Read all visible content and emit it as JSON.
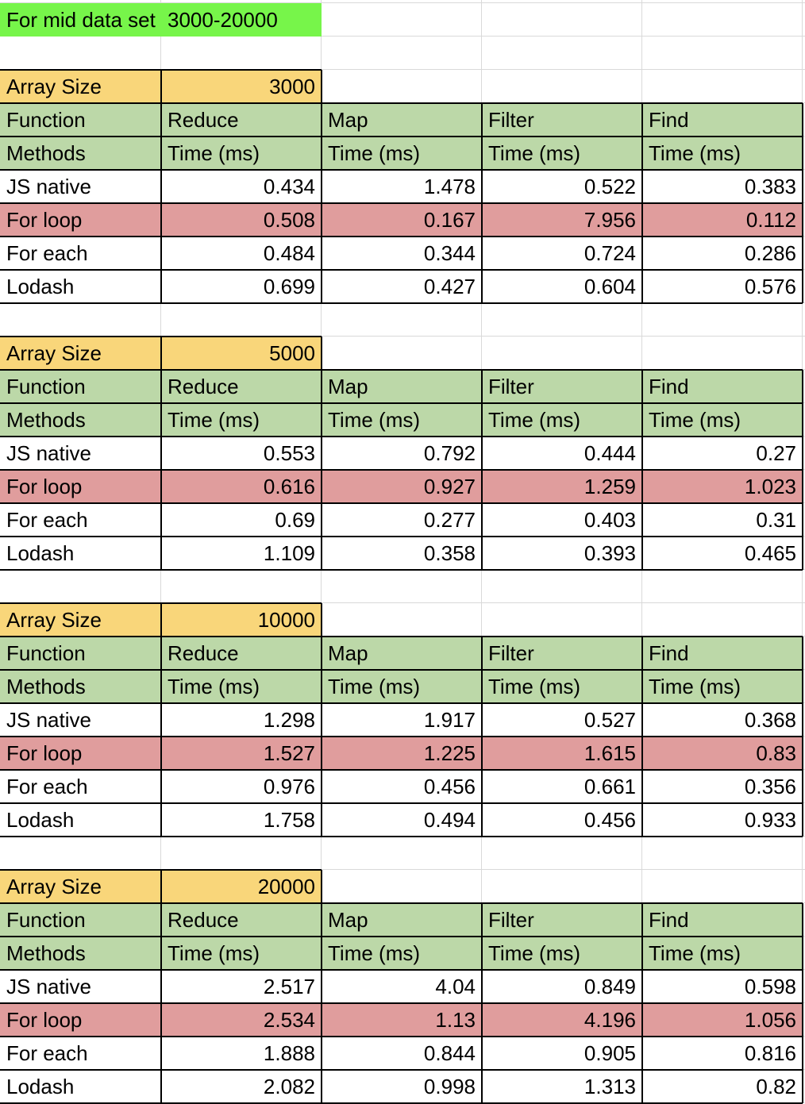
{
  "sheet": {
    "title_label": "For mid data set",
    "title_range": "3000-20000",
    "blocks": [
      {
        "array_size_label": "Array Size",
        "array_size": "3000",
        "header_functions": [
          "Function",
          "Reduce",
          "Map",
          "Filter",
          "Find"
        ],
        "header_units": [
          "Methods",
          "Time (ms)",
          "Time (ms)",
          "Time (ms)",
          "Time (ms)"
        ],
        "rows": [
          {
            "method": "JS native",
            "values": [
              "0.434",
              "1.478",
              "0.522",
              "0.383"
            ],
            "highlight": false
          },
          {
            "method": "For loop",
            "values": [
              "0.508",
              "0.167",
              "7.956",
              "0.112"
            ],
            "highlight": true
          },
          {
            "method": "For each",
            "values": [
              "0.484",
              "0.344",
              "0.724",
              "0.286"
            ],
            "highlight": false
          },
          {
            "method": "Lodash",
            "values": [
              "0.699",
              "0.427",
              "0.604",
              "0.576"
            ],
            "highlight": false
          }
        ]
      },
      {
        "array_size_label": "Array Size",
        "array_size": "5000",
        "header_functions": [
          "Function",
          "Reduce",
          "Map",
          "Filter",
          "Find"
        ],
        "header_units": [
          "Methods",
          "Time (ms)",
          "Time (ms)",
          "Time (ms)",
          "Time (ms)"
        ],
        "rows": [
          {
            "method": "JS native",
            "values": [
              "0.553",
              "0.792",
              "0.444",
              "0.27"
            ],
            "highlight": false
          },
          {
            "method": "For loop",
            "values": [
              "0.616",
              "0.927",
              "1.259",
              "1.023"
            ],
            "highlight": true
          },
          {
            "method": "For each",
            "values": [
              "0.69",
              "0.277",
              "0.403",
              "0.31"
            ],
            "highlight": false
          },
          {
            "method": "Lodash",
            "values": [
              "1.109",
              "0.358",
              "0.393",
              "0.465"
            ],
            "highlight": false
          }
        ]
      },
      {
        "array_size_label": "Array Size",
        "array_size": "10000",
        "header_functions": [
          "Function",
          "Reduce",
          "Map",
          "Filter",
          "Find"
        ],
        "header_units": [
          "Methods",
          "Time (ms)",
          "Time (ms)",
          "Time (ms)",
          "Time (ms)"
        ],
        "rows": [
          {
            "method": "JS native",
            "values": [
              "1.298",
              "1.917",
              "0.527",
              "0.368"
            ],
            "highlight": false
          },
          {
            "method": "For loop",
            "values": [
              "1.527",
              "1.225",
              "1.615",
              "0.83"
            ],
            "highlight": true
          },
          {
            "method": "For each",
            "values": [
              "0.976",
              "0.456",
              "0.661",
              "0.356"
            ],
            "highlight": false
          },
          {
            "method": "Lodash",
            "values": [
              "1.758",
              "0.494",
              "0.456",
              "0.933"
            ],
            "highlight": false
          }
        ]
      },
      {
        "array_size_label": "Array Size",
        "array_size": "20000",
        "header_functions": [
          "Function",
          "Reduce",
          "Map",
          "Filter",
          "Find"
        ],
        "header_units": [
          "Methods",
          "Time (ms)",
          "Time (ms)",
          "Time (ms)",
          "Time (ms)"
        ],
        "rows": [
          {
            "method": "JS native",
            "values": [
              "2.517",
              "4.04",
              "0.849",
              "0.598"
            ],
            "highlight": false
          },
          {
            "method": "For loop",
            "values": [
              "2.534",
              "1.13",
              "4.196",
              "1.056"
            ],
            "highlight": true
          },
          {
            "method": "For each",
            "values": [
              "1.888",
              "0.844",
              "0.905",
              "0.816"
            ],
            "highlight": false
          },
          {
            "method": "Lodash",
            "values": [
              "2.082",
              "0.998",
              "1.313",
              "0.82"
            ],
            "highlight": false
          }
        ]
      }
    ]
  }
}
